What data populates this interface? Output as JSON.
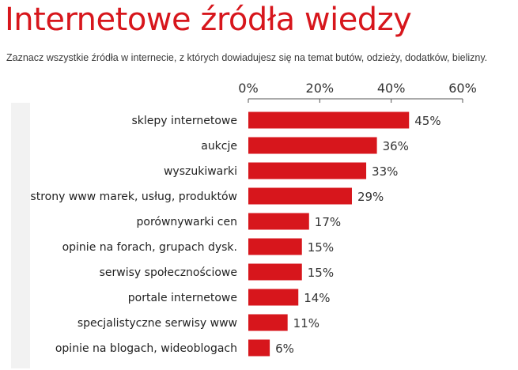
{
  "header": {
    "title": "Internetowe źródła wiedzy",
    "subtitle": "Zaznacz wszystkie źródła w internecie, z których dowiadujesz się na temat butów, odzieży, dodatków, bielizny."
  },
  "colors": {
    "bar": "#d7161c",
    "title": "#d7161c",
    "axis": "#555555"
  },
  "chart_data": {
    "type": "bar",
    "orientation": "horizontal",
    "title": "Internetowe źródła wiedzy",
    "xlabel": "",
    "ylabel": "",
    "xlim": [
      0,
      60
    ],
    "xticks": [
      0,
      20,
      40,
      60
    ],
    "xtick_labels": [
      "0%",
      "20%",
      "40%",
      "60%"
    ],
    "grid": false,
    "categories": [
      "sklepy internetowe",
      "aukcje",
      "wyszukiwarki",
      "strony www marek, usług, produktów",
      "porównywarki cen",
      "opinie na forach, grupach dysk.",
      "serwisy społecznościowe",
      "portale internetowe",
      "specjalistyczne serwisy www",
      "opinie na blogach, wideoblogach"
    ],
    "values": [
      45,
      36,
      33,
      29,
      17,
      15,
      15,
      14,
      11,
      6
    ],
    "value_labels": [
      "45%",
      "36%",
      "33%",
      "29%",
      "17%",
      "15%",
      "15%",
      "14%",
      "11%",
      "6%"
    ]
  }
}
